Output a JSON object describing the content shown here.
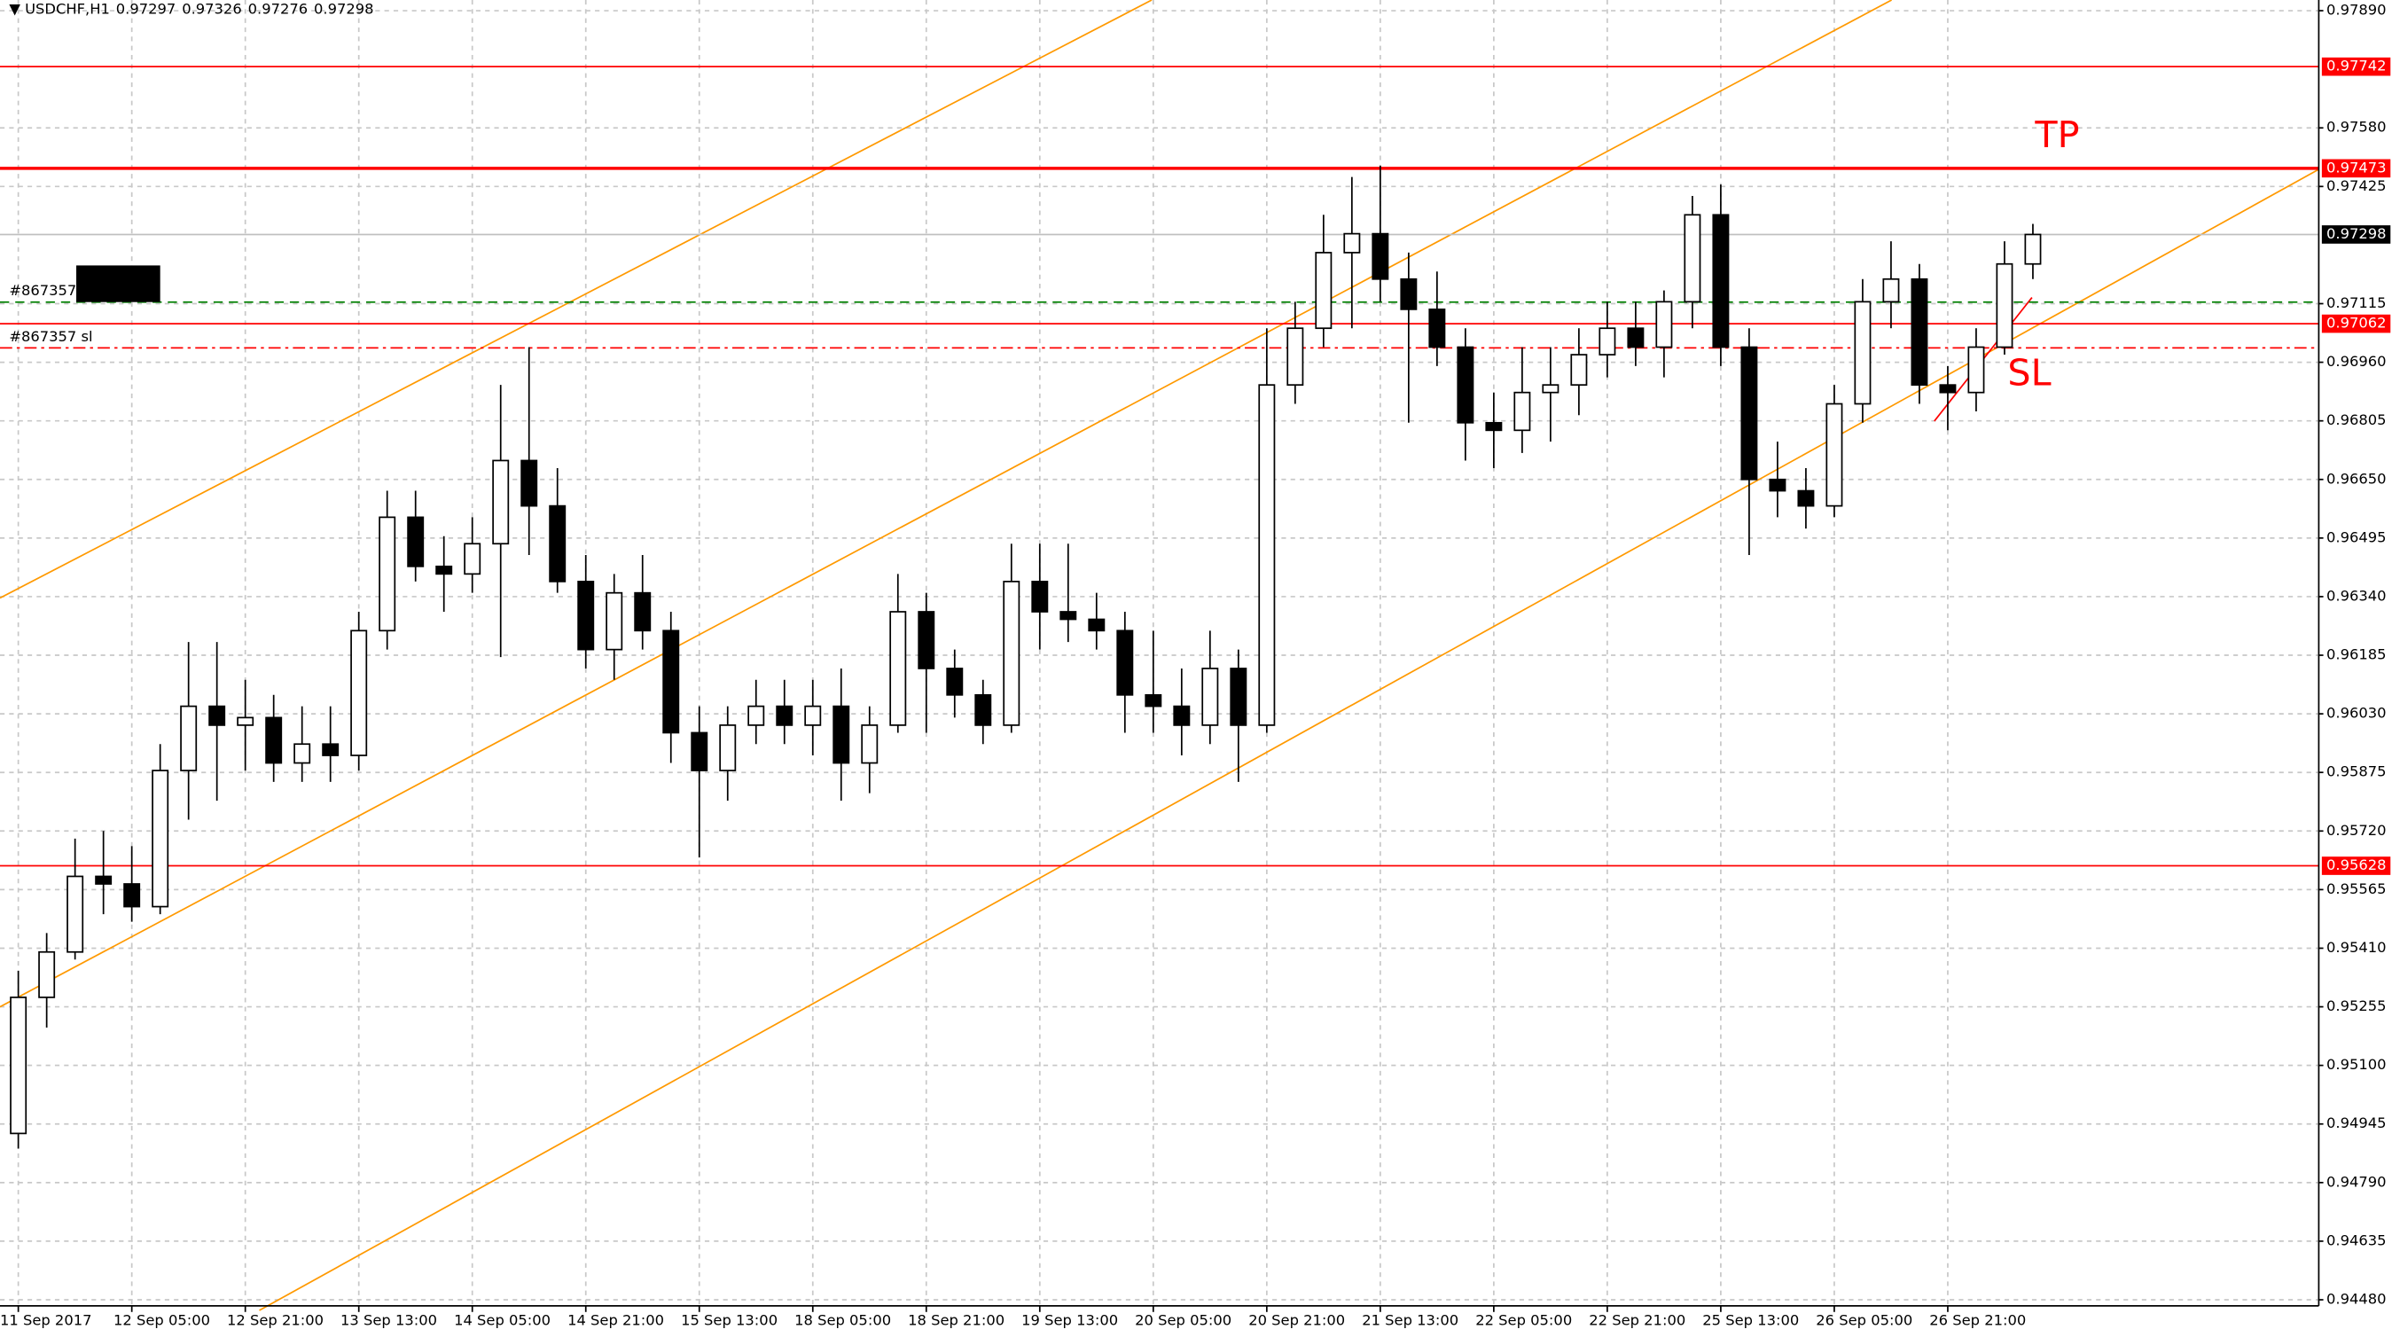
{
  "chart_data": {
    "type": "candlestick",
    "title": "USDCHF,H1",
    "quote": [
      0.97297,
      0.97326,
      0.97276,
      0.97298
    ],
    "categories": [
      "11 Sep 2017",
      null,
      null,
      null,
      "12 Sep 05:00",
      null,
      null,
      null,
      "12 Sep 21:00",
      null,
      null,
      null,
      "13 Sep 13:00",
      null,
      null,
      null,
      "14 Sep 05:00",
      null,
      null,
      null,
      "14 Sep 21:00",
      null,
      null,
      null,
      "15 Sep 13:00",
      null,
      null,
      null,
      "18 Sep 05:00",
      null,
      null,
      null,
      "18 Sep 21:00",
      null,
      null,
      null,
      "19 Sep 13:00",
      null,
      null,
      null,
      "20 Sep 05:00",
      null,
      null,
      null,
      "20 Sep 21:00",
      null,
      null,
      null,
      "21 Sep 13:00",
      null,
      null,
      null,
      "22 Sep 05:00",
      null,
      null,
      null,
      "22 Sep 21:00",
      null,
      null,
      null,
      "25 Sep 13:00",
      null,
      null,
      null,
      "26 Sep 05:00",
      null,
      null,
      null,
      "26 Sep 21:00",
      null,
      null,
      null
    ],
    "open": [
      0.9492,
      0.9528,
      0.954,
      0.956,
      0.9558,
      0.9552,
      0.9588,
      0.9605,
      0.96,
      0.9602,
      0.959,
      0.9595,
      0.9592,
      0.9625,
      0.9655,
      0.9642,
      0.964,
      0.9648,
      0.967,
      0.9658,
      0.9638,
      0.962,
      0.9635,
      0.9625,
      0.9598,
      0.9588,
      0.96,
      0.9605,
      0.96,
      0.9605,
      0.959,
      0.96,
      0.963,
      0.9615,
      0.9608,
      0.96,
      0.9638,
      0.963,
      0.9628,
      0.9625,
      0.9608,
      0.9605,
      0.96,
      0.9615,
      0.96,
      0.969,
      0.9705,
      0.9725,
      0.973,
      0.9718,
      0.971,
      0.97,
      0.968,
      0.9678,
      0.9688,
      0.969,
      0.9698,
      0.9705,
      0.97,
      0.9712,
      0.9735,
      0.97,
      0.9665,
      0.9662,
      0.9658,
      0.9685,
      0.9712,
      0.9718,
      0.969,
      0.9688,
      0.97,
      0.9722
    ],
    "high": [
      0.9535,
      0.9545,
      0.957,
      0.9572,
      0.9568,
      0.9595,
      0.9622,
      0.9622,
      0.9612,
      0.9608,
      0.9605,
      0.9605,
      0.963,
      0.9662,
      0.9662,
      0.965,
      0.9655,
      0.969,
      0.97,
      0.9668,
      0.9645,
      0.964,
      0.9645,
      0.963,
      0.9605,
      0.9605,
      0.9612,
      0.9612,
      0.9612,
      0.9615,
      0.9605,
      0.964,
      0.9635,
      0.962,
      0.9612,
      0.9648,
      0.9648,
      0.9648,
      0.9635,
      0.963,
      0.9625,
      0.9615,
      0.9625,
      0.962,
      0.9705,
      0.9712,
      0.9735,
      0.9745,
      0.9748,
      0.9725,
      0.972,
      0.9705,
      0.9688,
      0.97,
      0.97,
      0.9705,
      0.9712,
      0.9712,
      0.9715,
      0.974,
      0.9743,
      0.9705,
      0.9675,
      0.9668,
      0.969,
      0.9718,
      0.9728,
      0.9722,
      0.9695,
      0.9705,
      0.9728,
      0.97326
    ],
    "low": [
      0.9488,
      0.952,
      0.9538,
      0.955,
      0.9548,
      0.955,
      0.9575,
      0.958,
      0.9588,
      0.9585,
      0.9585,
      0.9585,
      0.9588,
      0.962,
      0.9638,
      0.963,
      0.9635,
      0.9618,
      0.9645,
      0.9635,
      0.9615,
      0.9612,
      0.962,
      0.959,
      0.9565,
      0.958,
      0.9595,
      0.9595,
      0.9592,
      0.958,
      0.9582,
      0.9598,
      0.9598,
      0.9602,
      0.9595,
      0.9598,
      0.962,
      0.9622,
      0.962,
      0.9598,
      0.9598,
      0.9592,
      0.9595,
      0.9585,
      0.9598,
      0.9685,
      0.97,
      0.9705,
      0.9712,
      0.968,
      0.9695,
      0.967,
      0.9668,
      0.9672,
      0.9675,
      0.9682,
      0.9692,
      0.9695,
      0.9692,
      0.9705,
      0.9695,
      0.9645,
      0.9655,
      0.9652,
      0.9655,
      0.968,
      0.9705,
      0.9685,
      0.9678,
      0.9683,
      0.9698,
      0.9718
    ],
    "close": [
      0.9528,
      0.954,
      0.956,
      0.9558,
      0.9552,
      0.9588,
      0.9605,
      0.96,
      0.9602,
      0.959,
      0.9595,
      0.9592,
      0.9625,
      0.9655,
      0.9642,
      0.964,
      0.9648,
      0.967,
      0.9658,
      0.9638,
      0.962,
      0.9635,
      0.9625,
      0.9598,
      0.9588,
      0.96,
      0.9605,
      0.96,
      0.9605,
      0.959,
      0.96,
      0.963,
      0.9615,
      0.9608,
      0.96,
      0.9638,
      0.963,
      0.9628,
      0.9625,
      0.9608,
      0.9605,
      0.96,
      0.9615,
      0.96,
      0.969,
      0.9705,
      0.9725,
      0.973,
      0.9718,
      0.971,
      0.97,
      0.968,
      0.9678,
      0.9688,
      0.969,
      0.9698,
      0.9705,
      0.97,
      0.9712,
      0.9735,
      0.97,
      0.9665,
      0.9662,
      0.9658,
      0.9685,
      0.9712,
      0.9718,
      0.969,
      0.9688,
      0.97,
      0.9722,
      0.97298
    ],
    "color": "#000000",
    "ylim": [
      0.9448,
      0.9789
    ],
    "yticks": [
      {
        "value": 0.9789,
        "label": "0.97890"
      },
      {
        "value": 0.9758,
        "label": "0.97580"
      },
      0.97425,
      0.97115,
      {
        "value": 0.9696,
        "label": "0.96960"
      },
      0.96805,
      {
        "value": 0.9665,
        "label": "0.96650"
      },
      0.96495,
      {
        "value": 0.9634,
        "label": "0.96340"
      },
      0.96185,
      {
        "value": 0.9603,
        "label": "0.96030"
      },
      0.95875,
      {
        "value": 0.9572,
        "label": "0.95720"
      },
      0.95565,
      {
        "value": 0.9541,
        "label": "0.95410"
      },
      0.95255,
      {
        "value": 0.951,
        "label": "0.95100"
      },
      0.94945,
      {
        "value": 0.9479,
        "label": "0.94790"
      },
      0.94635,
      {
        "value": 0.9448,
        "label": "0.94480"
      }
    ],
    "grid": true,
    "levels": [
      {
        "value": 0.97742,
        "color": "#ff0000",
        "width": 1
      },
      {
        "value": 0.97473,
        "color": "#ff0000",
        "width": 2
      },
      {
        "value": 0.97298,
        "color": "#c0c0c0",
        "width": 1
      },
      {
        "value": 0.97062,
        "color": "#ff0000",
        "width": 1
      },
      {
        "value": 0.95628,
        "color": "#ff0000",
        "width": 1
      }
    ],
    "orders": [
      {
        "name": "#867357",
        "value": 0.97119,
        "color": "#008000"
      },
      {
        "name": "#867357 sl",
        "value": 0.96998,
        "color": "#ff0000"
      }
    ],
    "annotations": [
      "TP",
      "SL"
    ]
  }
}
